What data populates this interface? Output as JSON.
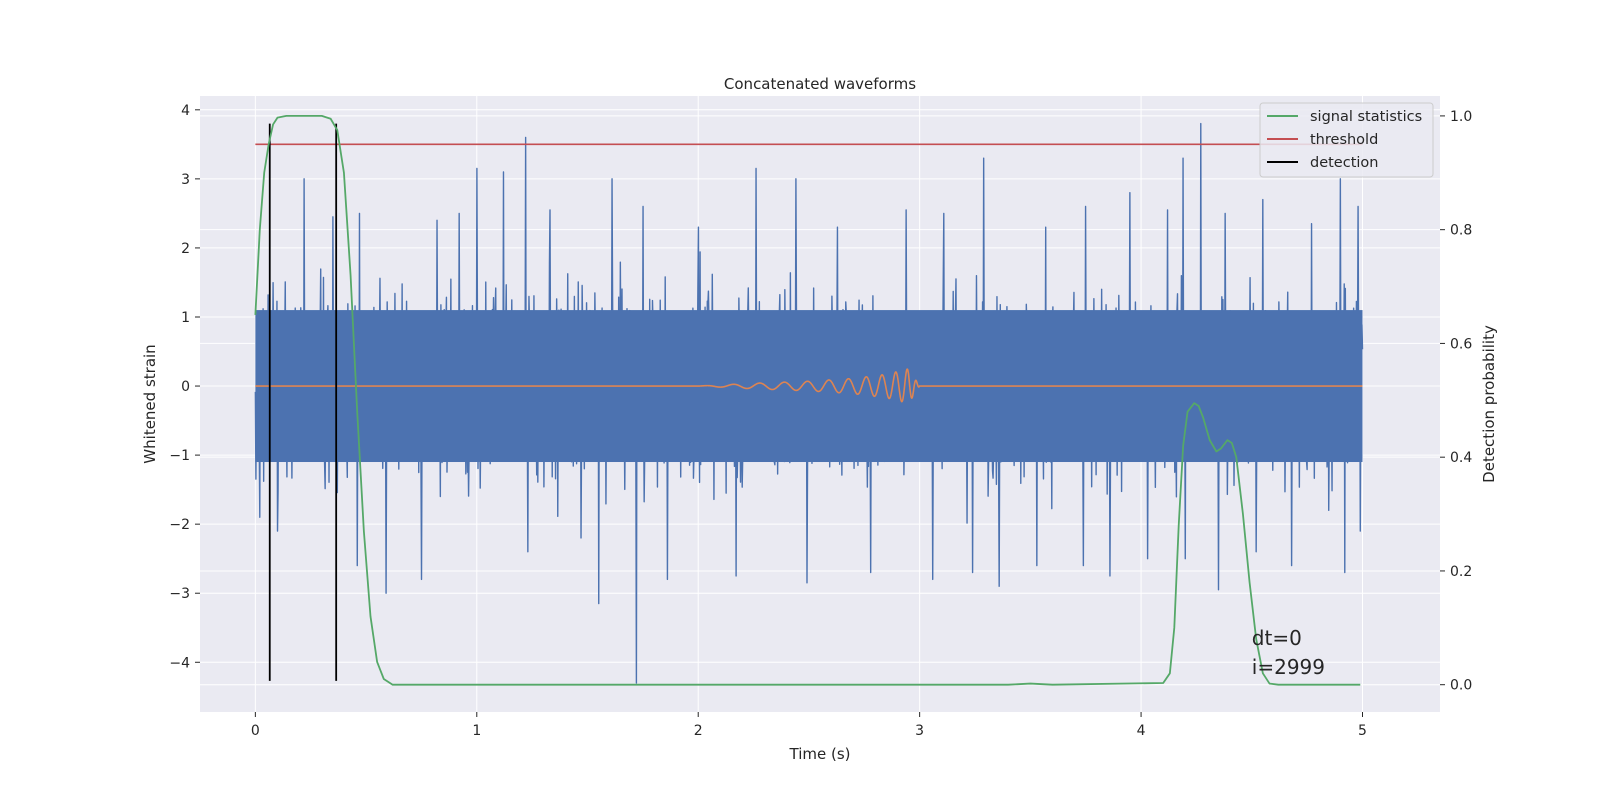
{
  "chart_data": {
    "type": "line",
    "title": "Concatenated waveforms",
    "xlabel": "Time (s)",
    "ylabel": "Whitened strain",
    "y2label": "Detection probability",
    "xlim": [
      -0.25,
      5.35
    ],
    "ylim": [
      -4.72,
      4.2
    ],
    "y2lim": [
      -0.048,
      1.035
    ],
    "xticks": [
      0,
      1,
      2,
      3,
      4,
      5
    ],
    "yticks": [
      4,
      3,
      2,
      1,
      0,
      -1,
      -2,
      -3,
      -4
    ],
    "y2ticks": [
      1.0,
      0.8,
      0.6,
      0.4,
      0.2,
      0.0
    ],
    "grid": true,
    "legend_position": "top-right",
    "colors": {
      "background": "#eaeaf2",
      "grid": "#ffffff",
      "noise": "#4c72b0",
      "template": "#dd8452",
      "signal_statistics": "#55a868",
      "threshold": "#c44e52",
      "detection": "#000000"
    },
    "series": [
      {
        "name": "whitened strain (noise)",
        "axis": "left",
        "x_range": [
          0,
          5
        ],
        "envelope": {
          "core_abs": 1.1,
          "peaks": [
            {
              "x": 0.02,
              "y": 2.2
            },
            {
              "x": 0.22,
              "y": 3.0
            },
            {
              "x": 0.35,
              "y": 2.45
            },
            {
              "x": 0.47,
              "y": 2.5
            },
            {
              "x": 0.59,
              "y": 2.4
            },
            {
              "x": 0.82,
              "y": 2.4
            },
            {
              "x": 0.92,
              "y": 2.5
            },
            {
              "x": 1.0,
              "y": 3.15
            },
            {
              "x": 1.12,
              "y": 3.1
            },
            {
              "x": 1.22,
              "y": 3.6
            },
            {
              "x": 1.33,
              "y": 2.55
            },
            {
              "x": 1.61,
              "y": 3.0
            },
            {
              "x": 1.75,
              "y": 2.6
            },
            {
              "x": 2.0,
              "y": 2.3
            },
            {
              "x": 2.26,
              "y": 3.15
            },
            {
              "x": 2.44,
              "y": 3.0
            },
            {
              "x": 2.63,
              "y": 2.3
            },
            {
              "x": 2.94,
              "y": 2.55
            },
            {
              "x": 3.11,
              "y": 2.5
            },
            {
              "x": 3.29,
              "y": 3.3
            },
            {
              "x": 3.57,
              "y": 2.3
            },
            {
              "x": 3.75,
              "y": 2.6
            },
            {
              "x": 3.95,
              "y": 2.8
            },
            {
              "x": 4.12,
              "y": 2.55
            },
            {
              "x": 4.19,
              "y": 3.3
            },
            {
              "x": 4.27,
              "y": 3.8
            },
            {
              "x": 4.38,
              "y": 2.5
            },
            {
              "x": 4.55,
              "y": 2.7
            },
            {
              "x": 4.77,
              "y": 2.35
            },
            {
              "x": 4.9,
              "y": 3.0
            },
            {
              "x": 4.98,
              "y": 2.6
            }
          ],
          "troughs": [
            {
              "x": 0.02,
              "y": -1.9
            },
            {
              "x": 0.1,
              "y": -2.1
            },
            {
              "x": 0.46,
              "y": -2.6
            },
            {
              "x": 0.59,
              "y": -3.0
            },
            {
              "x": 0.75,
              "y": -2.8
            },
            {
              "x": 1.23,
              "y": -2.4
            },
            {
              "x": 1.47,
              "y": -2.2
            },
            {
              "x": 1.55,
              "y": -3.15
            },
            {
              "x": 1.72,
              "y": -4.3
            },
            {
              "x": 1.86,
              "y": -2.8
            },
            {
              "x": 2.17,
              "y": -2.75
            },
            {
              "x": 2.49,
              "y": -2.85
            },
            {
              "x": 2.78,
              "y": -2.7
            },
            {
              "x": 3.06,
              "y": -2.8
            },
            {
              "x": 3.24,
              "y": -2.7
            },
            {
              "x": 3.36,
              "y": -2.9
            },
            {
              "x": 3.53,
              "y": -2.6
            },
            {
              "x": 3.74,
              "y": -2.6
            },
            {
              "x": 3.86,
              "y": -2.75
            },
            {
              "x": 4.03,
              "y": -2.5
            },
            {
              "x": 4.2,
              "y": -2.5
            },
            {
              "x": 4.35,
              "y": -2.95
            },
            {
              "x": 4.52,
              "y": -2.4
            },
            {
              "x": 4.68,
              "y": -2.6
            },
            {
              "x": 4.92,
              "y": -2.7
            },
            {
              "x": 4.99,
              "y": -2.1
            }
          ]
        }
      },
      {
        "name": "injected waveform",
        "axis": "left",
        "x_range": [
          0,
          5
        ],
        "points": [
          {
            "x": 2.0,
            "y": 0.0
          },
          {
            "x": 2.25,
            "y": 0.04
          },
          {
            "x": 2.5,
            "y": 0.07
          },
          {
            "x": 2.7,
            "y": 0.11
          },
          {
            "x": 2.85,
            "y": 0.17
          },
          {
            "x": 2.95,
            "y": 0.25
          },
          {
            "x": 3.0,
            "y": 0.0
          }
        ]
      },
      {
        "name": "signal statistics",
        "axis": "right",
        "points": [
          [
            0.0,
            0.65
          ],
          [
            0.02,
            0.8
          ],
          [
            0.04,
            0.9
          ],
          [
            0.06,
            0.95
          ],
          [
            0.08,
            0.985
          ],
          [
            0.1,
            0.997
          ],
          [
            0.14,
            1.0
          ],
          [
            0.3,
            1.0
          ],
          [
            0.34,
            0.995
          ],
          [
            0.37,
            0.975
          ],
          [
            0.4,
            0.9
          ],
          [
            0.43,
            0.72
          ],
          [
            0.46,
            0.48
          ],
          [
            0.49,
            0.27
          ],
          [
            0.52,
            0.12
          ],
          [
            0.55,
            0.04
          ],
          [
            0.58,
            0.01
          ],
          [
            0.62,
            0.0
          ],
          [
            1.0,
            0.0
          ],
          [
            2.0,
            0.0
          ],
          [
            3.0,
            0.0
          ],
          [
            3.4,
            0.0
          ],
          [
            3.5,
            0.002
          ],
          [
            3.6,
            0.0
          ],
          [
            4.1,
            0.003
          ],
          [
            4.13,
            0.02
          ],
          [
            4.15,
            0.1
          ],
          [
            4.17,
            0.28
          ],
          [
            4.19,
            0.42
          ],
          [
            4.21,
            0.48
          ],
          [
            4.24,
            0.495
          ],
          [
            4.26,
            0.49
          ],
          [
            4.28,
            0.47
          ],
          [
            4.31,
            0.43
          ],
          [
            4.34,
            0.41
          ],
          [
            4.36,
            0.415
          ],
          [
            4.39,
            0.43
          ],
          [
            4.41,
            0.425
          ],
          [
            4.43,
            0.4
          ],
          [
            4.46,
            0.3
          ],
          [
            4.49,
            0.18
          ],
          [
            4.52,
            0.08
          ],
          [
            4.55,
            0.02
          ],
          [
            4.58,
            0.002
          ],
          [
            4.62,
            0.0
          ],
          [
            4.99,
            0.0
          ]
        ]
      },
      {
        "name": "threshold",
        "axis": "right",
        "value": 0.95,
        "x_range": [
          0,
          5
        ]
      },
      {
        "name": "detection",
        "axis": "left",
        "x": [
          0.065,
          0.365
        ],
        "y_range": [
          -4.27,
          3.8
        ]
      }
    ],
    "legend": [
      {
        "label": "signal statistics",
        "color": "#55a868"
      },
      {
        "label": "threshold",
        "color": "#c44e52"
      },
      {
        "label": "detection",
        "color": "#000000"
      }
    ],
    "annotations": [
      "dt=0",
      "i=2999"
    ],
    "annotation_position": {
      "x": 4.5,
      "y": -3.75
    }
  }
}
